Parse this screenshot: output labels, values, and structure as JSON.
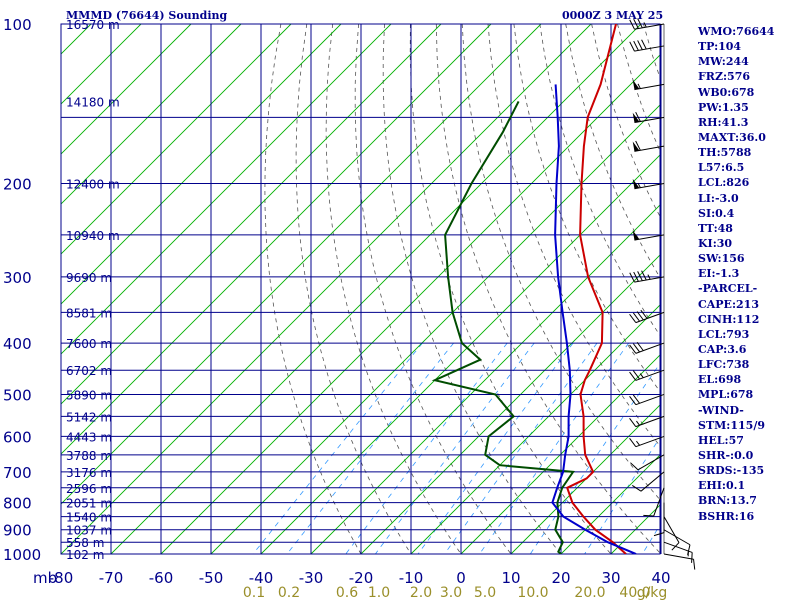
{
  "header": {
    "station": "MMMD (76644) Sounding",
    "time": "0000Z  3 MAY 25"
  },
  "stats": [
    "WMO:76644",
    "TP:104",
    "MW:244",
    "FRZ:576",
    "WB0:678",
    "PW:1.35",
    "RH:41.3",
    "MAXT:36.0",
    "TH:5788",
    "L57:6.5",
    "LCL:826",
    "LI:-3.0",
    "SI:0.4",
    "TT:48",
    "KI:30",
    "SW:156",
    "EI:-1.3",
    "-PARCEL-",
    "CAPE:213",
    "CINH:112",
    "LCL:793",
    "CAP:3.6",
    "LFC:738",
    "EL:698",
    "MPL:678",
    "-WIND-",
    "STM:115/9",
    "HEL:57",
    "SHR-:0.0",
    "SRDS:-135",
    "EHI:0.1",
    "BRN:13.7",
    "BSHR:16"
  ],
  "colors": {
    "isobar": "#00008b",
    "isotherm": "#00b000",
    "dry_adiabat": "#555555",
    "mixing_ratio": "#3399ff",
    "temperature": "#cc0000",
    "dewpoint": "#004d00",
    "parcel": "#0000cc",
    "mixratio_label": "#9a8f2a"
  },
  "chart_data": {
    "type": "skew-t",
    "y_scale": "log-pressure",
    "ylim": [
      1000,
      100
    ],
    "pressure_ticks": [
      100,
      200,
      300,
      400,
      500,
      600,
      700,
      800,
      900,
      1000
    ],
    "pressure_ticks_labeled": [
      "100",
      "200",
      "300",
      "400",
      "500",
      "600",
      "700",
      "800",
      "900",
      "1000"
    ],
    "x_unit_label": "mb",
    "temperature_ticks": [
      "-80",
      "-70",
      "-60",
      "-50",
      "-40",
      "-30",
      "-20",
      "-10",
      "0",
      "10",
      "20",
      "30",
      "40"
    ],
    "temperature_tick_values": [
      -80,
      -70,
      -60,
      -50,
      -40,
      -30,
      -20,
      -10,
      0,
      10,
      20,
      30,
      40
    ],
    "mixing_ratio_labels": [
      "0.1",
      "0.2",
      "0.6",
      "1.0",
      "2.0",
      "3.0",
      "5.0",
      "10.0",
      "20.0",
      "40.0",
      "g/kg"
    ],
    "heights": [
      {
        "label": "16570 m",
        "p": 100
      },
      {
        "label": "14180 m",
        "p": 140
      },
      {
        "label": "12400 m",
        "p": 200
      },
      {
        "label": "10940 m",
        "p": 250
      },
      {
        "label": "9690 m",
        "p": 300
      },
      {
        "label": "8581 m",
        "p": 350
      },
      {
        "label": "7600 m",
        "p": 400
      },
      {
        "label": "6702 m",
        "p": 450
      },
      {
        "label": "5890 m",
        "p": 500
      },
      {
        "label": "5142 m",
        "p": 550
      },
      {
        "label": "4443 m",
        "p": 600
      },
      {
        "label": "3788 m",
        "p": 650
      },
      {
        "label": "3176 m",
        "p": 700
      },
      {
        "label": "2596 m",
        "p": 750
      },
      {
        "label": "2051 m",
        "p": 800
      },
      {
        "label": "1540 m",
        "p": 850
      },
      {
        "label": "1037 m",
        "p": 900
      },
      {
        "label": "558 m",
        "p": 950
      },
      {
        "label": "102 m",
        "p": 1000
      }
    ],
    "series": [
      {
        "kind": "temperature",
        "points": [
          {
            "p": 1000,
            "t": 33
          },
          {
            "p": 950,
            "t": 28
          },
          {
            "p": 900,
            "t": 22
          },
          {
            "p": 850,
            "t": 17
          },
          {
            "p": 800,
            "t": 12
          },
          {
            "p": 750,
            "t": 8
          },
          {
            "p": 720,
            "t": 10
          },
          {
            "p": 700,
            "t": 10
          },
          {
            "p": 650,
            "t": 5
          },
          {
            "p": 600,
            "t": 1
          },
          {
            "p": 550,
            "t": -3
          },
          {
            "p": 500,
            "t": -8
          },
          {
            "p": 470,
            "t": -10
          },
          {
            "p": 450,
            "t": -11
          },
          {
            "p": 400,
            "t": -14
          },
          {
            "p": 350,
            "t": -20
          },
          {
            "p": 300,
            "t": -30
          },
          {
            "p": 250,
            "t": -40
          },
          {
            "p": 200,
            "t": -50
          },
          {
            "p": 170,
            "t": -57
          },
          {
            "p": 150,
            "t": -62
          },
          {
            "p": 130,
            "t": -66
          },
          {
            "p": 100,
            "t": -75
          }
        ]
      },
      {
        "kind": "dewpoint",
        "points": [
          {
            "p": 1000,
            "t": 20
          },
          {
            "p": 990,
            "t": 19
          },
          {
            "p": 950,
            "t": 18
          },
          {
            "p": 900,
            "t": 14
          },
          {
            "p": 850,
            "t": 12
          },
          {
            "p": 800,
            "t": 9
          },
          {
            "p": 750,
            "t": 7
          },
          {
            "p": 700,
            "t": 6
          },
          {
            "p": 680,
            "t": -10
          },
          {
            "p": 650,
            "t": -15
          },
          {
            "p": 600,
            "t": -18
          },
          {
            "p": 550,
            "t": -17
          },
          {
            "p": 500,
            "t": -25
          },
          {
            "p": 470,
            "t": -40
          },
          {
            "p": 430,
            "t": -35
          },
          {
            "p": 400,
            "t": -42
          },
          {
            "p": 350,
            "t": -50
          },
          {
            "p": 300,
            "t": -58
          },
          {
            "p": 250,
            "t": -67
          },
          {
            "p": 200,
            "t": -72
          },
          {
            "p": 160,
            "t": -76
          },
          {
            "p": 140,
            "t": -79
          }
        ]
      },
      {
        "kind": "parcel",
        "points": [
          {
            "p": 1000,
            "t": 35
          },
          {
            "p": 950,
            "t": 27
          },
          {
            "p": 900,
            "t": 20
          },
          {
            "p": 850,
            "t": 13
          },
          {
            "p": 800,
            "t": 8
          },
          {
            "p": 750,
            "t": 6
          },
          {
            "p": 700,
            "t": 4
          },
          {
            "p": 650,
            "t": 1
          },
          {
            "p": 600,
            "t": -2
          },
          {
            "p": 550,
            "t": -6
          },
          {
            "p": 500,
            "t": -10
          },
          {
            "p": 450,
            "t": -15
          },
          {
            "p": 400,
            "t": -21
          },
          {
            "p": 350,
            "t": -28
          },
          {
            "p": 300,
            "t": -36
          },
          {
            "p": 250,
            "t": -45
          },
          {
            "p": 200,
            "t": -55
          },
          {
            "p": 170,
            "t": -62
          },
          {
            "p": 150,
            "t": -68
          },
          {
            "p": 130,
            "t": -75
          }
        ]
      }
    ],
    "wind_barbs": [
      {
        "p": 1000,
        "dir": 100,
        "spd": 10
      },
      {
        "p": 950,
        "dir": 110,
        "spd": 15
      },
      {
        "p": 900,
        "dir": 120,
        "spd": 10
      },
      {
        "p": 850,
        "dir": 150,
        "spd": 10
      },
      {
        "p": 800,
        "dir": 180,
        "spd": 10
      },
      {
        "p": 750,
        "dir": 200,
        "spd": 10
      },
      {
        "p": 700,
        "dir": 230,
        "spd": 10
      },
      {
        "p": 650,
        "dir": 240,
        "spd": 10
      },
      {
        "p": 600,
        "dir": 250,
        "spd": 15
      },
      {
        "p": 550,
        "dir": 250,
        "spd": 15
      },
      {
        "p": 500,
        "dir": 250,
        "spd": 20
      },
      {
        "p": 450,
        "dir": 250,
        "spd": 25
      },
      {
        "p": 400,
        "dir": 250,
        "spd": 30
      },
      {
        "p": 350,
        "dir": 250,
        "spd": 40
      },
      {
        "p": 300,
        "dir": 260,
        "spd": 45
      },
      {
        "p": 250,
        "dir": 260,
        "spd": 50
      },
      {
        "p": 200,
        "dir": 260,
        "spd": 55
      },
      {
        "p": 170,
        "dir": 260,
        "spd": 60
      },
      {
        "p": 150,
        "dir": 260,
        "spd": 60
      },
      {
        "p": 130,
        "dir": 260,
        "spd": 55
      },
      {
        "p": 110,
        "dir": 260,
        "spd": 40
      },
      {
        "p": 100,
        "dir": 260,
        "spd": 35
      }
    ]
  }
}
